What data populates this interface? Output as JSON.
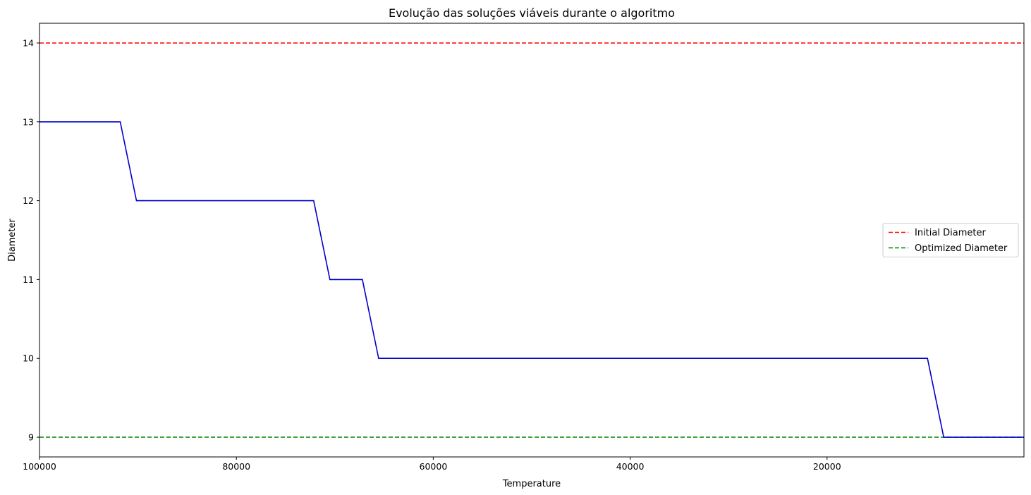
{
  "chart_data": {
    "type": "line",
    "title": "Evolução das soluções viáveis durante o algoritmo",
    "xlabel": "Temperature",
    "ylabel": "Diameter",
    "xlim": [
      100000,
      0
    ],
    "ylim": [
      8.75,
      14.25
    ],
    "x_ticks": [
      100000,
      80000,
      60000,
      40000,
      20000
    ],
    "x_tick_labels": [
      "100000",
      "80000",
      "60000",
      "40000",
      "20000"
    ],
    "y_ticks": [
      9,
      10,
      11,
      12,
      13,
      14
    ],
    "y_tick_labels": [
      "9",
      "10",
      "11",
      "12",
      "13",
      "14"
    ],
    "grid": false,
    "legend_position": "center-right",
    "series": [
      {
        "color": "#0000cc",
        "style": "solid",
        "x": [
          100000,
          91800,
          90150,
          72150,
          70500,
          67200,
          65550,
          9800,
          8150,
          0
        ],
        "y": [
          13,
          13,
          12,
          12,
          11,
          11,
          10,
          10,
          9,
          9
        ]
      }
    ],
    "reference_lines": [
      {
        "name": "Initial Diameter",
        "y": 14,
        "color": "#ff0000",
        "style": "dashed"
      },
      {
        "name": "Optimized Diameter",
        "y": 9,
        "color": "#008000",
        "style": "dashed"
      }
    ]
  }
}
